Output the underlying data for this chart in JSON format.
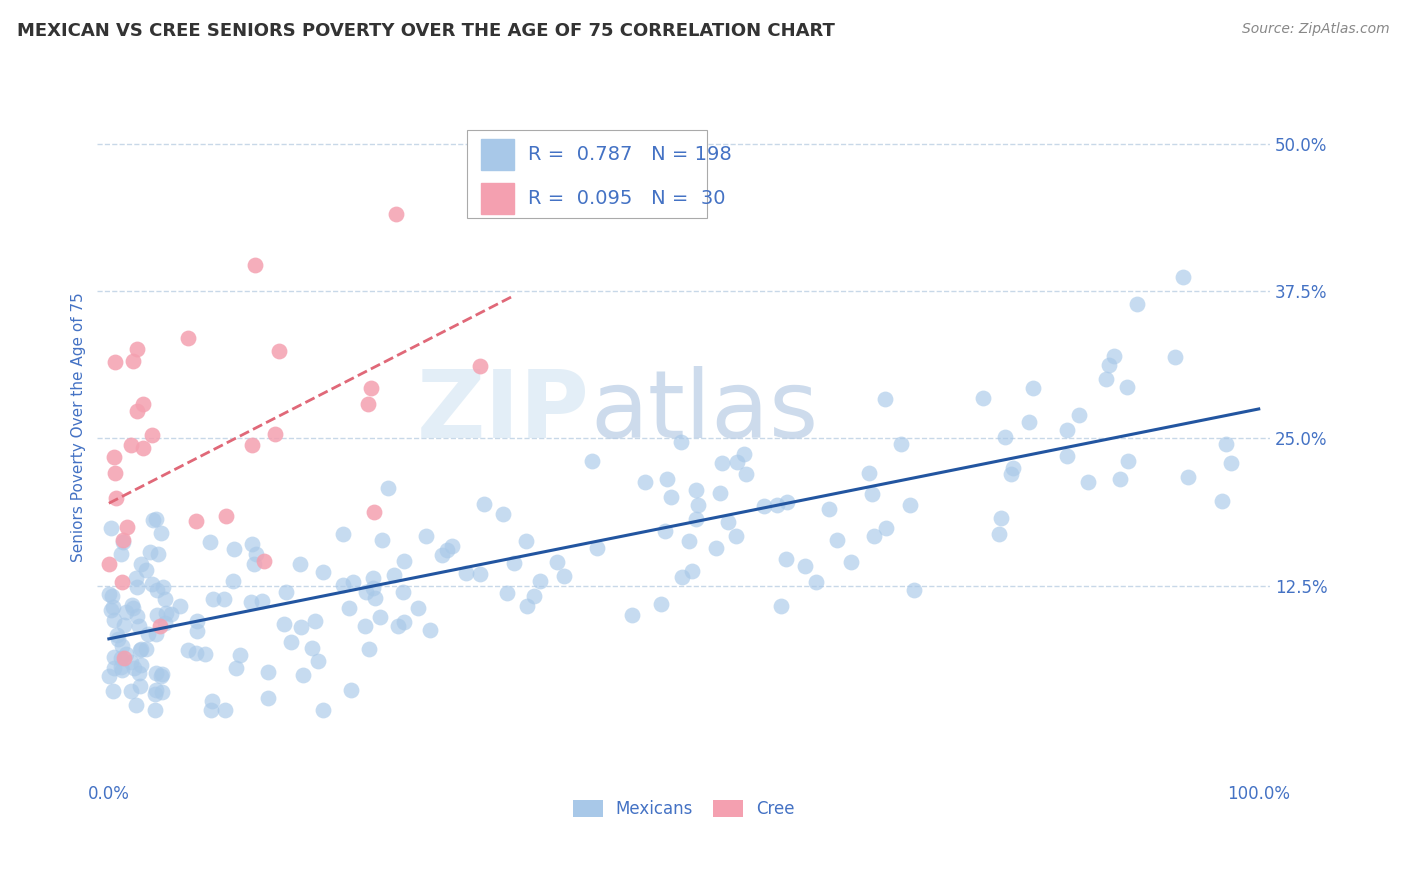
{
  "title": "MEXICAN VS CREE SENIORS POVERTY OVER THE AGE OF 75 CORRELATION CHART",
  "source": "Source: ZipAtlas.com",
  "ylabel": "Seniors Poverty Over the Age of 75",
  "xlabel": "",
  "xlim": [
    -0.01,
    1.01
  ],
  "ylim": [
    -0.04,
    0.56
  ],
  "yticks": [
    0.125,
    0.25,
    0.375,
    0.5
  ],
  "ytick_labels": [
    "12.5%",
    "25.0%",
    "37.5%",
    "50.0%"
  ],
  "xticks": [
    0.0,
    1.0
  ],
  "xtick_labels": [
    "0.0%",
    "100.0%"
  ],
  "mexican_R": 0.787,
  "mexican_N": 198,
  "cree_R": 0.095,
  "cree_N": 30,
  "dot_color_mexican": "#a8c8e8",
  "dot_color_cree": "#f4a0b0",
  "line_color_mexican": "#2255a0",
  "line_color_cree": "#e06878",
  "legend_label_mexican": "Mexicans",
  "legend_label_cree": "Cree",
  "watermark_zip": "ZIP",
  "watermark_atlas": "atlas",
  "title_color": "#333333",
  "axis_label_color": "#4472c4",
  "tick_color": "#4472c4",
  "background_color": "#ffffff",
  "grid_color": "#c8d8e8",
  "title_fontsize": 13,
  "axis_fontsize": 11,
  "tick_fontsize": 12,
  "legend_fontsize": 14,
  "source_fontsize": 10,
  "mex_line_start_x": 0.0,
  "mex_line_start_y": 0.08,
  "mex_line_end_x": 1.0,
  "mex_line_end_y": 0.275,
  "cree_line_start_x": 0.0,
  "cree_line_start_y": 0.195,
  "cree_line_end_x": 0.35,
  "cree_line_end_y": 0.37
}
